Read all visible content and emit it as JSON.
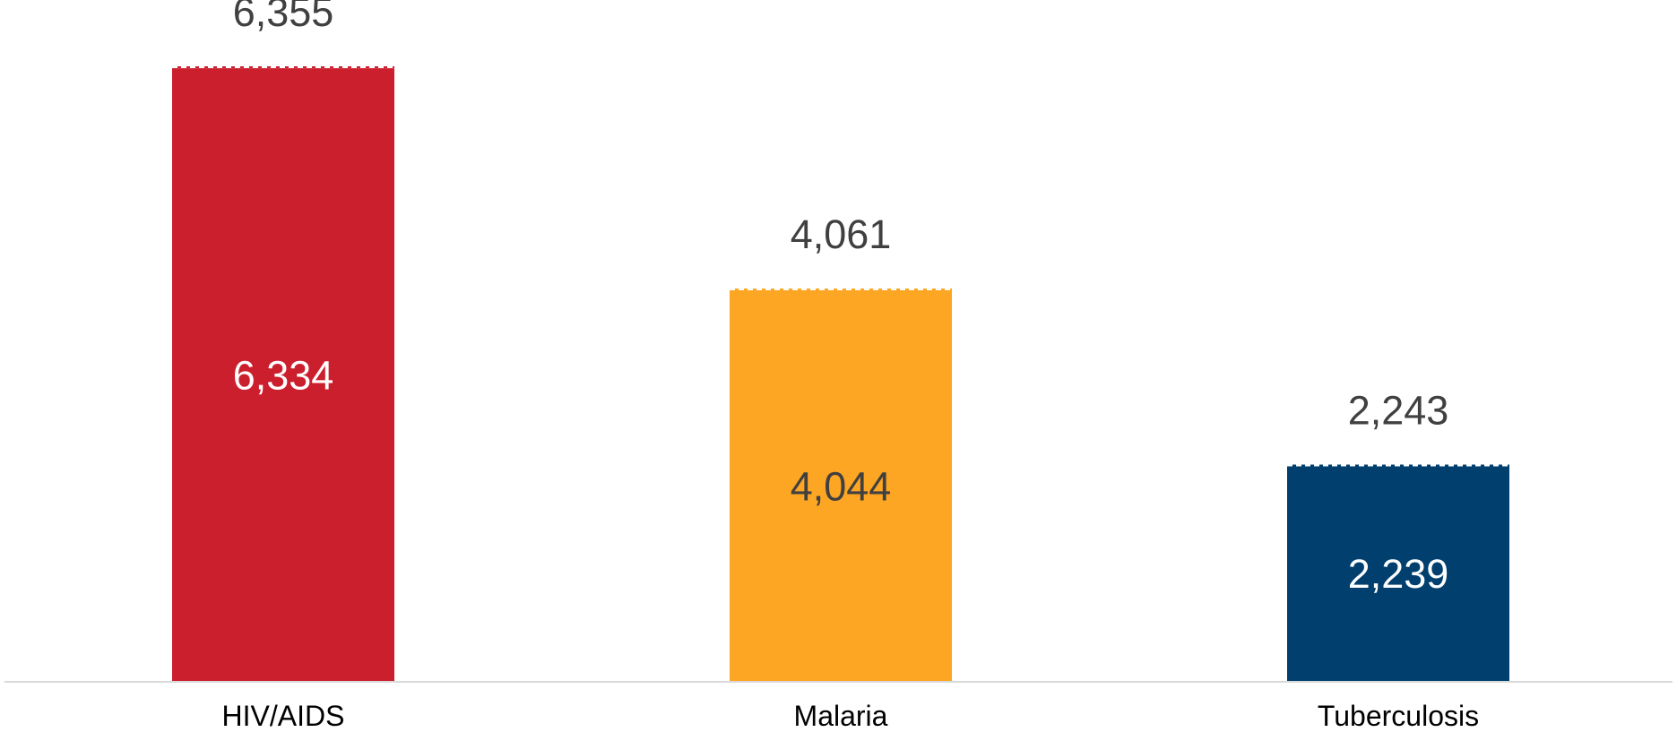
{
  "chart_data": {
    "type": "bar",
    "categories": [
      "HIV/AIDS",
      "Malaria",
      "Tuberculosis"
    ],
    "series": [
      {
        "values": [
          6334,
          4044,
          2239
        ],
        "labels": [
          "6,334",
          "4,044",
          "2,239"
        ]
      },
      {
        "values": [
          6355,
          4061,
          2243
        ],
        "labels": [
          "6,355",
          "4,061",
          "2,243"
        ]
      }
    ],
    "title": "",
    "xlabel": "",
    "ylabel": "",
    "ylim": [
      0,
      6900
    ],
    "grid": false,
    "legend": "none",
    "bar_colors": [
      "#cc1f2d",
      "#fda624",
      "#003f6e"
    ],
    "inside_label_colors": [
      "#ffffff",
      "#404040",
      "#ffffff"
    ],
    "axis_color": "#d9d9d9",
    "label_color": "#404040"
  }
}
